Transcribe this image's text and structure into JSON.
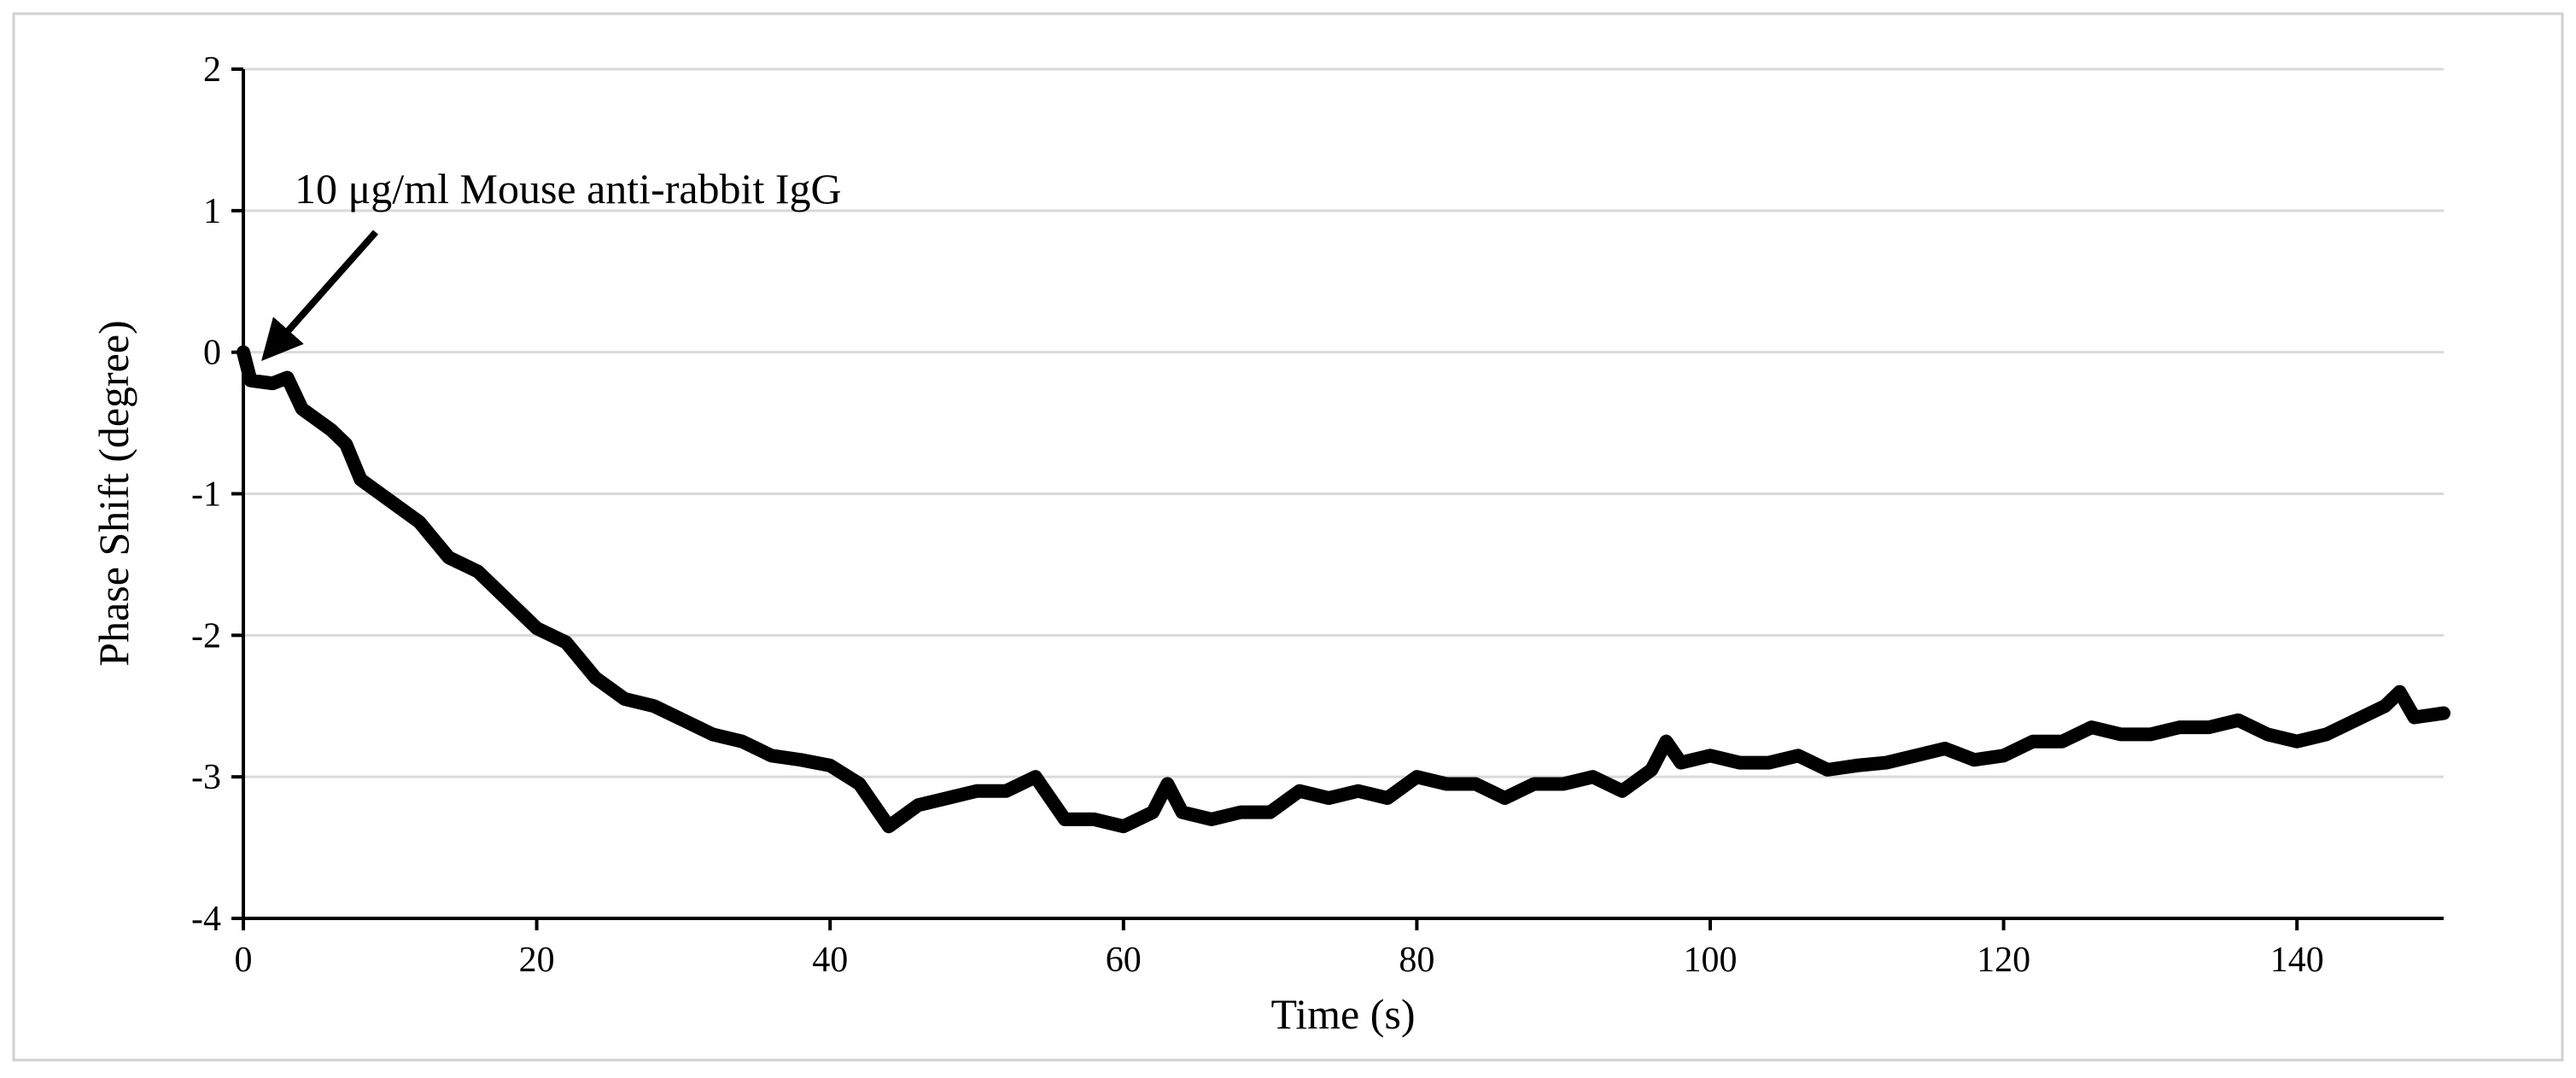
{
  "chart_data": {
    "type": "line",
    "x_label": "Time (s)",
    "y_label": "Phase Shift (degree)",
    "annotation": "10 μg/ml Mouse anti-rabbit IgG",
    "xlim": [
      0,
      150
    ],
    "ylim": [
      -4,
      2
    ],
    "xticks": [
      0,
      20,
      40,
      60,
      80,
      100,
      120,
      140
    ],
    "yticks": [
      -4,
      -3,
      -2,
      -1,
      0,
      1,
      2
    ],
    "grid": true,
    "x": [
      0,
      0.5,
      2,
      3,
      4,
      6,
      7,
      8,
      10,
      12,
      14,
      16,
      18,
      20,
      22,
      24,
      26,
      28,
      30,
      32,
      34,
      36,
      38,
      40,
      42,
      44,
      46,
      48,
      50,
      52,
      54,
      56,
      58,
      60,
      62,
      63,
      64,
      66,
      68,
      70,
      72,
      74,
      76,
      78,
      80,
      82,
      84,
      86,
      88,
      90,
      92,
      94,
      96,
      97,
      98,
      100,
      102,
      104,
      106,
      108,
      110,
      112,
      114,
      116,
      118,
      120,
      122,
      124,
      126,
      128,
      130,
      132,
      134,
      136,
      138,
      140,
      142,
      144,
      146,
      147,
      148,
      150
    ],
    "series": [
      {
        "color": "#000000",
        "values": [
          0,
          -0.2,
          -0.22,
          -0.18,
          -0.4,
          -0.55,
          -0.65,
          -0.9,
          -1.05,
          -1.2,
          -1.45,
          -1.55,
          -1.75,
          -1.95,
          -2.05,
          -2.3,
          -2.45,
          -2.5,
          -2.6,
          -2.7,
          -2.75,
          -2.85,
          -2.88,
          -2.92,
          -3.05,
          -3.35,
          -3.2,
          -3.15,
          -3.1,
          -3.1,
          -3.0,
          -3.3,
          -3.3,
          -3.35,
          -3.25,
          -3.05,
          -3.25,
          -3.3,
          -3.25,
          -3.25,
          -3.1,
          -3.15,
          -3.1,
          -3.15,
          -3.0,
          -3.05,
          -3.05,
          -3.15,
          -3.05,
          -3.05,
          -3.0,
          -3.1,
          -2.95,
          -2.75,
          -2.9,
          -2.85,
          -2.9,
          -2.9,
          -2.85,
          -2.95,
          -2.92,
          -2.9,
          -2.85,
          -2.8,
          -2.88,
          -2.85,
          -2.75,
          -2.75,
          -2.65,
          -2.7,
          -2.7,
          -2.65,
          -2.65,
          -2.6,
          -2.7,
          -2.75,
          -2.7,
          -2.6,
          -2.5,
          -2.4,
          -2.58,
          -2.55
        ]
      }
    ]
  }
}
